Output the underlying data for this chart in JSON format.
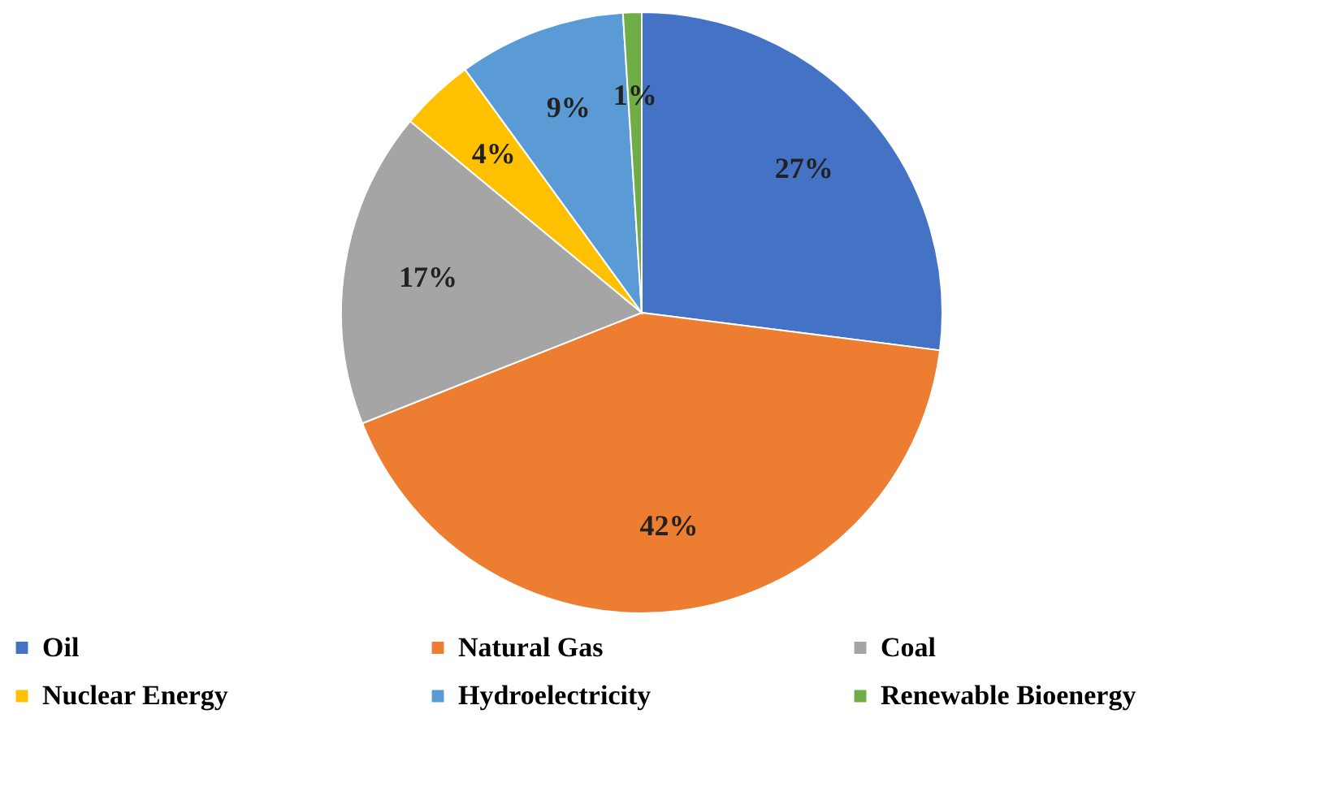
{
  "chart_data": {
    "type": "pie",
    "categories": [
      "Oil",
      "Natural Gas",
      "Coal",
      "Nuclear Energy",
      "Hydroelectricity",
      "Renewable Bioenergy"
    ],
    "values": [
      27,
      42,
      17,
      4,
      9,
      1
    ],
    "colors": [
      "#4472c4",
      "#ed7d31",
      "#a5a5a5",
      "#ffc000",
      "#5b9bd5",
      "#70ad47"
    ],
    "value_labels": [
      "27%",
      "42%",
      "17%",
      "4%",
      "9%",
      "1%"
    ],
    "legend": "bottom"
  }
}
